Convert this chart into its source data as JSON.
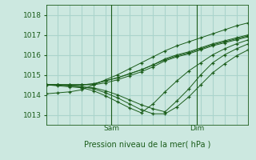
{
  "xlabel": "Pression niveau de la mer( hPa )",
  "bg_color": "#cce8e0",
  "grid_color": "#aad4cc",
  "line_color": "#1a5c1a",
  "marker": "+",
  "ylim": [
    1012.5,
    1018.5
  ],
  "yticks": [
    1013,
    1014,
    1015,
    1016,
    1017,
    1018
  ],
  "xlim": [
    0,
    17
  ],
  "vlines": [
    5.5,
    12.7
  ],
  "vlabels": [
    "Sam",
    "Dim"
  ],
  "series": [
    [
      1014.05,
      1014.1,
      1014.15,
      1014.25,
      1014.5,
      1014.75,
      1015.0,
      1015.3,
      1015.6,
      1015.9,
      1016.2,
      1016.45,
      1016.65,
      1016.85,
      1017.05,
      1017.25,
      1017.45,
      1017.6,
      1017.75,
      1017.85,
      1017.9
    ],
    [
      1014.5,
      1014.5,
      1014.5,
      1014.5,
      1014.55,
      1014.7,
      1014.85,
      1015.05,
      1015.25,
      1015.5,
      1015.75,
      1015.95,
      1016.1,
      1016.3,
      1016.5,
      1016.65,
      1016.8,
      1016.95,
      1017.1,
      1017.2,
      1017.3
    ],
    [
      1014.5,
      1014.5,
      1014.5,
      1014.5,
      1014.55,
      1014.7,
      1014.85,
      1015.05,
      1015.25,
      1015.5,
      1015.8,
      1016.0,
      1016.15,
      1016.35,
      1016.55,
      1016.7,
      1016.85,
      1017.0,
      1017.15,
      1017.25,
      1017.35
    ],
    [
      1014.5,
      1014.5,
      1014.5,
      1014.5,
      1014.5,
      1014.6,
      1014.75,
      1014.95,
      1015.15,
      1015.4,
      1015.7,
      1015.9,
      1016.05,
      1016.25,
      1016.45,
      1016.6,
      1016.75,
      1016.9,
      1017.05,
      1017.15,
      1017.25
    ],
    [
      1014.5,
      1014.5,
      1014.45,
      1014.4,
      1014.35,
      1014.2,
      1014.0,
      1013.75,
      1013.5,
      1013.3,
      1013.15,
      1013.7,
      1014.3,
      1015.0,
      1015.6,
      1016.0,
      1016.3,
      1016.55,
      1016.8,
      1016.95,
      1017.1
    ],
    [
      1014.5,
      1014.5,
      1014.45,
      1014.4,
      1014.3,
      1014.1,
      1013.85,
      1013.55,
      1013.25,
      1013.05,
      1013.05,
      1013.4,
      1013.9,
      1014.5,
      1015.1,
      1015.55,
      1015.95,
      1016.25,
      1016.55,
      1016.75,
      1016.95
    ],
    [
      1014.5,
      1014.45,
      1014.4,
      1014.35,
      1014.2,
      1013.95,
      1013.65,
      1013.35,
      1013.1,
      1013.55,
      1014.15,
      1014.7,
      1015.2,
      1015.6,
      1016.0,
      1016.3,
      1016.55,
      1016.75,
      1016.9,
      1017.1,
      1017.25
    ]
  ]
}
